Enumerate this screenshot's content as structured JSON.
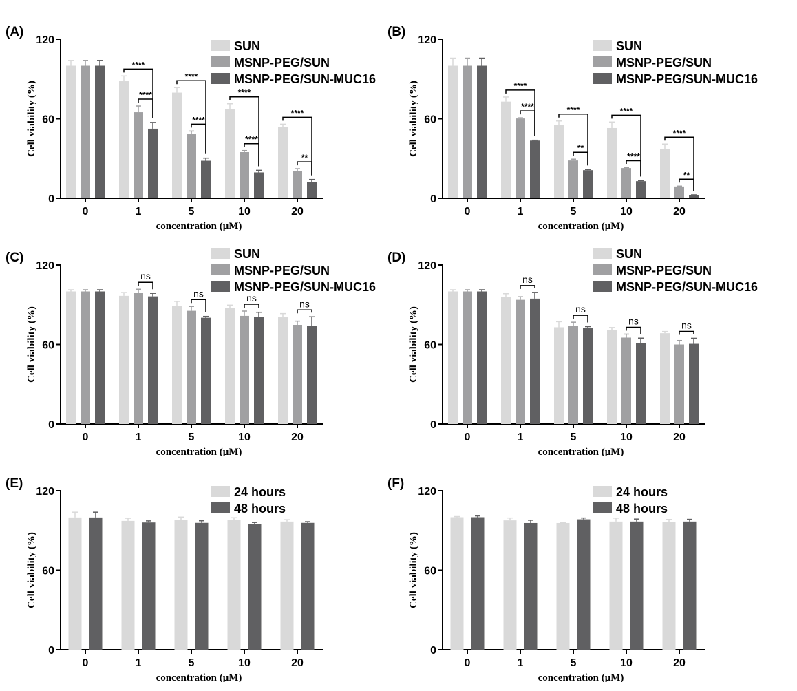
{
  "chart_data": [
    {
      "type": "bar",
      "panel_label": "(A)",
      "categories": [
        "0",
        "1",
        "5",
        "10",
        "20"
      ],
      "xlabel": "concentration (μM)",
      "ylabel": "Cell viability (%)",
      "ylim": [
        0,
        120
      ],
      "yticks": [
        "0",
        "60",
        "120"
      ],
      "legend": "top-right",
      "series": [
        {
          "name": "SUN",
          "color": "#d9d9d9",
          "values": [
            100,
            88.3,
            79.7,
            67.5,
            53.9
          ],
          "errors": [
            4,
            4,
            3.8,
            3.8,
            2
          ]
        },
        {
          "name": "MSNP-PEG/SUN",
          "color": "#a0a0a2",
          "values": [
            100,
            64.9,
            48.3,
            34.8,
            20.7
          ],
          "errors": [
            4,
            4.7,
            2.4,
            1.2,
            1.6
          ]
        },
        {
          "name": "MSNP-PEG/SUN-MUC16",
          "color": "#606062",
          "values": [
            100,
            52.5,
            28.3,
            19.5,
            12.3
          ],
          "errors": [
            4,
            4.7,
            2,
            1.6,
            1.9
          ]
        }
      ],
      "significance": [
        {
          "group": 1,
          "from": 0,
          "to": 2,
          "label": "****"
        },
        {
          "group": 1,
          "from": 1,
          "to": 2,
          "label": "****"
        },
        {
          "group": 2,
          "from": 0,
          "to": 2,
          "label": "****"
        },
        {
          "group": 2,
          "from": 1,
          "to": 2,
          "label": "****"
        },
        {
          "group": 3,
          "from": 0,
          "to": 2,
          "label": "****"
        },
        {
          "group": 3,
          "from": 1,
          "to": 2,
          "label": "****"
        },
        {
          "group": 4,
          "from": 0,
          "to": 2,
          "label": "****"
        },
        {
          "group": 4,
          "from": 1,
          "to": 2,
          "label": "**"
        }
      ]
    },
    {
      "type": "bar",
      "panel_label": "(B)",
      "categories": [
        "0",
        "1",
        "5",
        "10",
        "20"
      ],
      "xlabel": "concentration (μM)",
      "ylabel": "Cell viability (%)",
      "ylim": [
        0,
        120
      ],
      "yticks": [
        "0",
        "60",
        "120"
      ],
      "legend": "top-right",
      "series": [
        {
          "name": "SUN",
          "color": "#d9d9d9",
          "values": [
            100,
            72.9,
            55.5,
            53,
            37.4
          ],
          "errors": [
            5.7,
            3.5,
            2.8,
            4.5,
            3.5
          ]
        },
        {
          "name": "MSNP-PEG/SUN",
          "color": "#a0a0a2",
          "values": [
            100,
            60.2,
            28.5,
            22.8,
            8.9
          ],
          "errors": [
            5.7,
            0.5,
            1,
            0.3,
            0.3
          ]
        },
        {
          "name": "MSNP-PEG/SUN-MUC16",
          "color": "#606062",
          "values": [
            100,
            43.5,
            21.2,
            12.9,
            2.3
          ],
          "errors": [
            5.7,
            0.3,
            0.5,
            0.4,
            0.3
          ]
        }
      ],
      "significance": [
        {
          "group": 1,
          "from": 0,
          "to": 2,
          "label": "****"
        },
        {
          "group": 1,
          "from": 1,
          "to": 2,
          "label": "****"
        },
        {
          "group": 2,
          "from": 0,
          "to": 2,
          "label": "****"
        },
        {
          "group": 2,
          "from": 1,
          "to": 2,
          "label": "**"
        },
        {
          "group": 3,
          "from": 0,
          "to": 2,
          "label": "****"
        },
        {
          "group": 3,
          "from": 1,
          "to": 2,
          "label": "****"
        },
        {
          "group": 4,
          "from": 0,
          "to": 2,
          "label": "****"
        },
        {
          "group": 4,
          "from": 1,
          "to": 2,
          "label": "**"
        }
      ]
    },
    {
      "type": "bar",
      "panel_label": "(C)",
      "categories": [
        "0",
        "1",
        "5",
        "10",
        "20"
      ],
      "xlabel": "concentration (μM)",
      "ylabel": "Cell viability (%)",
      "ylim": [
        0,
        120
      ],
      "yticks": [
        "0",
        "60",
        "120"
      ],
      "legend": "top-right",
      "series": [
        {
          "name": "SUN",
          "color": "#d9d9d9",
          "values": [
            100,
            96.7,
            88.9,
            87.7,
            80.5
          ],
          "errors": [
            1.3,
            2.5,
            3.6,
            2,
            2.8
          ]
        },
        {
          "name": "MSNP-PEG/SUN",
          "color": "#a0a0a2",
          "values": [
            100,
            98.9,
            85.4,
            81.6,
            74.8
          ],
          "errors": [
            1.3,
            2.8,
            3.3,
            3.6,
            2.8
          ]
        },
        {
          "name": "MSNP-PEG/SUN-MUC16",
          "color": "#606062",
          "values": [
            100,
            96.3,
            80.2,
            81,
            74.1
          ],
          "errors": [
            1.3,
            2.3,
            1,
            3.3,
            6.8
          ]
        }
      ],
      "significance": [
        {
          "group": 1,
          "from": 1,
          "to": 2,
          "label": "ns"
        },
        {
          "group": 2,
          "from": 1,
          "to": 2,
          "label": "ns"
        },
        {
          "group": 3,
          "from": 1,
          "to": 2,
          "label": "ns"
        },
        {
          "group": 4,
          "from": 1,
          "to": 2,
          "label": "ns"
        }
      ]
    },
    {
      "type": "bar",
      "panel_label": "(D)",
      "categories": [
        "0",
        "1",
        "5",
        "10",
        "20"
      ],
      "xlabel": "concentration (μM)",
      "ylabel": "Cell viability (%)",
      "ylim": [
        0,
        120
      ],
      "yticks": [
        "0",
        "60",
        "120"
      ],
      "legend": "top-right",
      "series": [
        {
          "name": "SUN",
          "color": "#d9d9d9",
          "values": [
            100,
            95.7,
            73,
            70.8,
            68.5
          ],
          "errors": [
            1.3,
            2.6,
            4.2,
            2,
            1.3
          ]
        },
        {
          "name": "MSNP-PEG/SUN",
          "color": "#a0a0a2",
          "values": [
            100,
            93.7,
            74,
            65.2,
            60
          ],
          "errors": [
            1.3,
            2.3,
            2.8,
            2.6,
            3
          ]
        },
        {
          "name": "MSNP-PEG/SUN-MUC16",
          "color": "#606062",
          "values": [
            100,
            94.6,
            72.2,
            61,
            60.5
          ],
          "errors": [
            1.3,
            4.7,
            1.3,
            3.8,
            4.2
          ]
        }
      ],
      "significance": [
        {
          "group": 1,
          "from": 1,
          "to": 2,
          "label": "ns"
        },
        {
          "group": 2,
          "from": 1,
          "to": 2,
          "label": "ns"
        },
        {
          "group": 3,
          "from": 1,
          "to": 2,
          "label": "ns"
        },
        {
          "group": 4,
          "from": 1,
          "to": 2,
          "label": "ns"
        }
      ]
    },
    {
      "type": "bar",
      "panel_label": "(E)",
      "categories": [
        "0",
        "1",
        "5",
        "10",
        "20"
      ],
      "xlabel": "concentration (μM)",
      "ylabel": "Cell viability (%)",
      "ylim": [
        0,
        120
      ],
      "yticks": [
        "0",
        "60",
        "120"
      ],
      "legend": "top-right",
      "series": [
        {
          "name": "24 hours",
          "color": "#d9d9d9",
          "values": [
            99.8,
            97.2,
            97.7,
            98,
            96.7
          ],
          "errors": [
            4,
            2,
            2.4,
            1.6,
            1.4
          ]
        },
        {
          "name": "48 hours",
          "color": "#606062",
          "values": [
            99.8,
            96,
            95.7,
            94.6,
            95.7
          ],
          "errors": [
            4,
            1.2,
            1.6,
            1.4,
            0.9
          ]
        }
      ],
      "significance": []
    },
    {
      "type": "bar",
      "panel_label": "(F)",
      "categories": [
        "0",
        "1",
        "5",
        "10",
        "20"
      ],
      "xlabel": "concentration (μM)",
      "ylabel": "Cell viability (%)",
      "ylim": [
        0,
        120
      ],
      "yticks": [
        "0",
        "60",
        "120"
      ],
      "legend": "top-right",
      "series": [
        {
          "name": "24 hours",
          "color": "#d9d9d9",
          "values": [
            100,
            97.6,
            95.6,
            96.7,
            96.5
          ],
          "errors": [
            0.5,
            1.8,
            0.3,
            2.6,
            1.8
          ]
        },
        {
          "name": "48 hours",
          "color": "#606062",
          "values": [
            100,
            95.6,
            98.4,
            96.7,
            96.7
          ],
          "errors": [
            1,
            2.1,
            1,
            1.9,
            1.7
          ]
        }
      ],
      "significance": []
    }
  ]
}
